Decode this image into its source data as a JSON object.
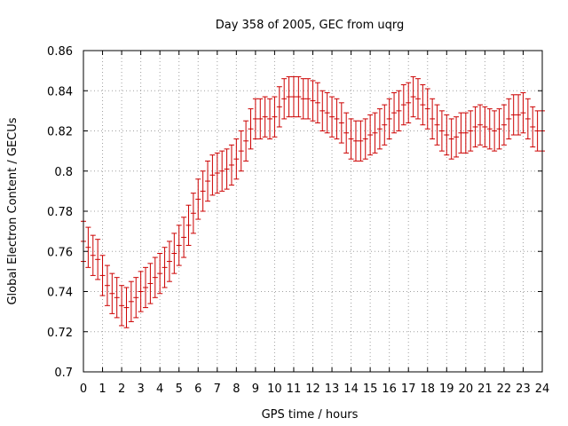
{
  "chart_data": {
    "type": "scatter",
    "title": "Day 358 of 2005, GEC from uqrg",
    "xlabel": "GPS time / hours",
    "ylabel": "Global Electron Content / GECUs",
    "xlim": [
      0,
      24
    ],
    "ylim": [
      0.7,
      0.86
    ],
    "x_ticks": [
      0,
      1,
      2,
      3,
      4,
      5,
      6,
      7,
      8,
      9,
      10,
      11,
      12,
      13,
      14,
      15,
      16,
      17,
      18,
      19,
      20,
      21,
      22,
      23,
      24
    ],
    "y_ticks": [
      0.7,
      0.72,
      0.74,
      0.76,
      0.78,
      0.8,
      0.82,
      0.84,
      0.86
    ],
    "x_tick_labels": [
      "0",
      "1",
      "2",
      "3",
      "4",
      "5",
      "6",
      "7",
      "8",
      "9",
      "10",
      "11",
      "12",
      "13",
      "14",
      "15",
      "16",
      "17",
      "18",
      "19",
      "20",
      "21",
      "22",
      "23",
      "24"
    ],
    "y_tick_labels": [
      "0.7",
      "0.72",
      "0.74",
      "0.76",
      "0.78",
      "0.8",
      "0.82",
      "0.84",
      "0.86"
    ],
    "grid": true,
    "color": "#cc0000",
    "error": 0.01,
    "series": [
      {
        "x": [
          0,
          0.25,
          0.5,
          0.75,
          1,
          1.25,
          1.5,
          1.75,
          2,
          2.25,
          2.5,
          2.75,
          3,
          3.25,
          3.5,
          3.75,
          4,
          4.25,
          4.5,
          4.75,
          5,
          5.25,
          5.5,
          5.75,
          6,
          6.25,
          6.5,
          6.75,
          7,
          7.25,
          7.5,
          7.75,
          8,
          8.25,
          8.5,
          8.75,
          9,
          9.25,
          9.5,
          9.75,
          10,
          10.25,
          10.5,
          10.75,
          11,
          11.25,
          11.5,
          11.75,
          12,
          12.25,
          12.5,
          12.75,
          13,
          13.25,
          13.5,
          13.75,
          14,
          14.25,
          14.5,
          14.75,
          15,
          15.25,
          15.5,
          15.75,
          16,
          16.25,
          16.5,
          16.75,
          17,
          17.25,
          17.5,
          17.75,
          18,
          18.25,
          18.5,
          18.75,
          19,
          19.25,
          19.5,
          19.75,
          20,
          20.25,
          20.5,
          20.75,
          21,
          21.25,
          21.5,
          21.75,
          22,
          22.25,
          22.5,
          22.75,
          23,
          23.25,
          23.5,
          23.75,
          24
        ],
        "y": [
          0.765,
          0.762,
          0.758,
          0.756,
          0.748,
          0.743,
          0.739,
          0.737,
          0.733,
          0.732,
          0.735,
          0.737,
          0.74,
          0.742,
          0.744,
          0.747,
          0.749,
          0.752,
          0.755,
          0.759,
          0.763,
          0.767,
          0.773,
          0.779,
          0.786,
          0.79,
          0.795,
          0.798,
          0.799,
          0.8,
          0.801,
          0.803,
          0.806,
          0.81,
          0.815,
          0.821,
          0.826,
          0.826,
          0.827,
          0.826,
          0.827,
          0.832,
          0.836,
          0.837,
          0.837,
          0.837,
          0.836,
          0.836,
          0.835,
          0.834,
          0.83,
          0.829,
          0.827,
          0.826,
          0.824,
          0.819,
          0.816,
          0.815,
          0.815,
          0.816,
          0.818,
          0.819,
          0.821,
          0.823,
          0.826,
          0.829,
          0.83,
          0.833,
          0.834,
          0.837,
          0.836,
          0.833,
          0.831,
          0.826,
          0.823,
          0.82,
          0.818,
          0.816,
          0.817,
          0.819,
          0.819,
          0.82,
          0.822,
          0.823,
          0.822,
          0.821,
          0.82,
          0.821,
          0.823,
          0.826,
          0.828,
          0.828,
          0.829,
          0.826,
          0.822,
          0.82,
          0.82
        ]
      }
    ]
  }
}
